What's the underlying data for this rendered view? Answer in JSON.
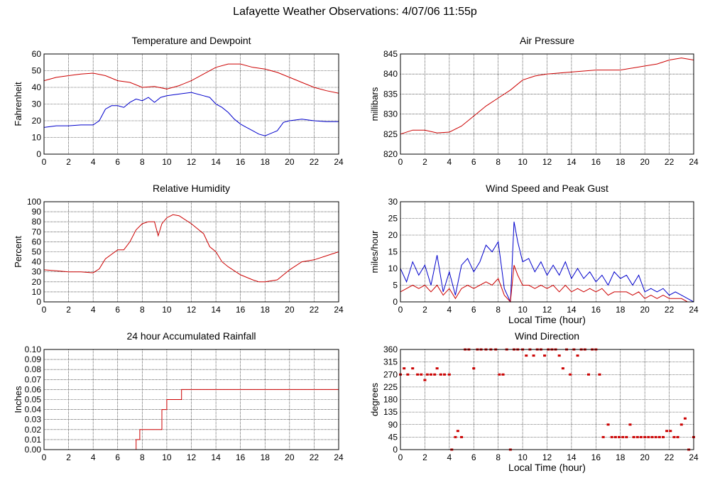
{
  "suptitle": "Lafayette Weather Observations: 4/07/06 11:55p",
  "colors": {
    "red": "#cc0000",
    "blue": "#0000cc",
    "grid": "#000000"
  },
  "chart_data": [
    {
      "id": "temp",
      "type": "line",
      "title": "Temperature and Dewpoint",
      "xlabel": "",
      "ylabel": "Fahrenheit",
      "xlim": [
        0,
        24
      ],
      "ylim": [
        0,
        60
      ],
      "xticks": [
        0,
        2,
        4,
        6,
        8,
        10,
        12,
        14,
        16,
        18,
        20,
        22,
        24
      ],
      "yticks": [
        0,
        10,
        20,
        30,
        40,
        50,
        60
      ],
      "grid": true,
      "series": [
        {
          "color": "red",
          "x": [
            0,
            1,
            2,
            3,
            4,
            5,
            6,
            7,
            8,
            9,
            10,
            11,
            12,
            13,
            14,
            15,
            16,
            17,
            18,
            19,
            20,
            21,
            22,
            23,
            24
          ],
          "y": [
            44,
            46,
            47,
            48,
            48.5,
            47,
            44,
            43,
            40,
            40.5,
            39,
            41,
            44,
            48,
            52,
            54,
            54,
            52,
            51,
            49,
            46,
            43,
            40,
            38,
            36.5
          ]
        },
        {
          "color": "blue",
          "x": [
            0,
            1,
            2,
            3,
            4,
            4.5,
            5,
            5.5,
            6,
            6.5,
            7,
            7.5,
            8,
            8.5,
            9,
            9.5,
            10,
            11,
            12,
            13,
            13.5,
            14,
            14.5,
            15,
            15.5,
            16,
            16.5,
            17,
            17.5,
            18,
            19,
            19.5,
            20,
            21,
            22,
            23,
            24
          ],
          "y": [
            16,
            17,
            17,
            17.5,
            17.5,
            20,
            27,
            29,
            29,
            28,
            31,
            33,
            32,
            34,
            31,
            34,
            35,
            36,
            37,
            35,
            34,
            30,
            28,
            25,
            21,
            18,
            16,
            14,
            12,
            11,
            14,
            19,
            20,
            21,
            20,
            19.5,
            19.5
          ]
        }
      ]
    },
    {
      "id": "pressure",
      "type": "line",
      "title": "Air Pressure",
      "xlabel": "",
      "ylabel": "millibars",
      "xlim": [
        0,
        24
      ],
      "ylim": [
        820,
        845
      ],
      "xticks": [
        0,
        2,
        4,
        6,
        8,
        10,
        12,
        14,
        16,
        18,
        20,
        22,
        24
      ],
      "yticks": [
        820,
        825,
        830,
        835,
        840,
        845
      ],
      "grid": true,
      "series": [
        {
          "color": "red",
          "x": [
            0,
            1,
            2,
            3,
            4,
            5,
            6,
            7,
            8,
            9,
            10,
            11,
            12,
            14,
            16,
            18,
            20,
            21,
            22,
            23,
            24
          ],
          "y": [
            825,
            826,
            826,
            825.3,
            825.5,
            827,
            829.5,
            832,
            834,
            836,
            838.5,
            839.5,
            840,
            840.5,
            841,
            841,
            842,
            842.5,
            843.5,
            844,
            843.5
          ]
        }
      ]
    },
    {
      "id": "humidity",
      "type": "line",
      "title": "Relative Humidity",
      "xlabel": "",
      "ylabel": "Percent",
      "xlim": [
        0,
        24
      ],
      "ylim": [
        0,
        100
      ],
      "xticks": [
        0,
        2,
        4,
        6,
        8,
        10,
        12,
        14,
        16,
        18,
        20,
        22,
        24
      ],
      "yticks": [
        0,
        10,
        20,
        30,
        40,
        50,
        60,
        70,
        80,
        90,
        100
      ],
      "grid": true,
      "series": [
        {
          "color": "red",
          "x": [
            0,
            1,
            2,
            3,
            4,
            4.5,
            5,
            6,
            6.5,
            7,
            7.5,
            8,
            8.5,
            9,
            9.3,
            9.6,
            10,
            10.5,
            11,
            12,
            13,
            13.5,
            14,
            14.5,
            15,
            16,
            17,
            17.5,
            18,
            19,
            20,
            21,
            22,
            23,
            24
          ],
          "y": [
            32,
            31,
            30,
            30,
            29,
            33,
            43,
            52,
            52,
            60,
            72,
            78,
            80,
            80,
            66,
            78,
            84,
            87,
            86,
            78,
            68,
            55,
            50,
            40,
            35,
            27,
            22,
            20,
            20,
            22,
            32,
            40,
            42,
            46,
            50
          ]
        }
      ]
    },
    {
      "id": "wind",
      "type": "line",
      "title": "Wind Speed and Peak Gust",
      "xlabel": "Local Time (hour)",
      "ylabel": "miles/hour",
      "xlim": [
        0,
        24
      ],
      "ylim": [
        0,
        30
      ],
      "xticks": [
        0,
        2,
        4,
        6,
        8,
        10,
        12,
        14,
        16,
        18,
        20,
        22,
        24
      ],
      "yticks": [
        0,
        5,
        10,
        15,
        20,
        25,
        30
      ],
      "grid": true,
      "series": [
        {
          "color": "blue",
          "x": [
            0,
            0.5,
            1,
            1.5,
            2,
            2.5,
            3,
            3.5,
            4,
            4.5,
            5,
            5.5,
            6,
            6.5,
            7,
            7.5,
            8,
            8.5,
            9,
            9.3,
            9.6,
            10,
            10.5,
            11,
            11.5,
            12,
            12.5,
            13,
            13.5,
            14,
            14.5,
            15,
            15.5,
            16,
            16.5,
            17,
            17.5,
            18,
            18.5,
            19,
            19.5,
            20,
            20.5,
            21,
            21.5,
            22,
            22.5,
            23,
            23.5,
            24
          ],
          "y": [
            10,
            6,
            12,
            8,
            11,
            5,
            14,
            3,
            9,
            2,
            11,
            13,
            9,
            12,
            17,
            15,
            18,
            4,
            0,
            24,
            18,
            12,
            13,
            9,
            12,
            8,
            11,
            8,
            12,
            7,
            10,
            7,
            9,
            6,
            8,
            5,
            9,
            7,
            8,
            5,
            8,
            3,
            4,
            3,
            4,
            2,
            3,
            2,
            1,
            0
          ]
        },
        {
          "color": "red",
          "x": [
            0,
            0.5,
            1,
            1.5,
            2,
            2.5,
            3,
            3.5,
            4,
            4.5,
            5,
            5.5,
            6,
            6.5,
            7,
            7.5,
            8,
            8.5,
            9,
            9.3,
            9.6,
            10,
            10.5,
            11,
            11.5,
            12,
            12.5,
            13,
            13.5,
            14,
            14.5,
            15,
            15.5,
            16,
            16.5,
            17,
            17.5,
            18,
            18.5,
            19,
            19.5,
            20,
            20.5,
            21,
            21.5,
            22,
            22.5,
            23,
            23.5,
            24
          ],
          "y": [
            3,
            4,
            5,
            4,
            5,
            3,
            5,
            2,
            4,
            1,
            4,
            5,
            4,
            5,
            6,
            5,
            7,
            2,
            0,
            11,
            8,
            5,
            5,
            4,
            5,
            4,
            5,
            3,
            5,
            3,
            4,
            3,
            4,
            3,
            4,
            2,
            3,
            3,
            3,
            2,
            3,
            1,
            2,
            1,
            2,
            1,
            1,
            1,
            0,
            0
          ]
        }
      ]
    },
    {
      "id": "rain",
      "type": "line",
      "title": "24 hour Accumulated Rainfall",
      "xlabel": "",
      "ylabel": "Inches",
      "xlim": [
        0,
        24
      ],
      "ylim": [
        0,
        0.1
      ],
      "xticks": [
        0,
        2,
        4,
        6,
        8,
        10,
        12,
        14,
        16,
        18,
        20,
        22,
        24
      ],
      "yticks": [
        "0.00",
        "0.01",
        "0.02",
        "0.03",
        "0.04",
        "0.05",
        "0.06",
        "0.07",
        "0.08",
        "0.09",
        "0.10"
      ],
      "grid": true,
      "series": [
        {
          "color": "red",
          "x": [
            0,
            7.5,
            7.5,
            7.8,
            7.8,
            9.6,
            9.6,
            10,
            10,
            11.2,
            11.2,
            24
          ],
          "y": [
            0,
            0,
            0.01,
            0.01,
            0.02,
            0.02,
            0.04,
            0.04,
            0.05,
            0.05,
            0.06,
            0.06
          ]
        }
      ]
    },
    {
      "id": "direction",
      "type": "scatter",
      "title": "Wind Direction",
      "xlabel": "Local Time (hour)",
      "ylabel": "degrees",
      "xlim": [
        0,
        24
      ],
      "ylim": [
        0,
        360
      ],
      "xticks": [
        0,
        2,
        4,
        6,
        8,
        10,
        12,
        14,
        16,
        18,
        20,
        22,
        24
      ],
      "yticks": [
        0,
        45,
        90,
        135,
        180,
        225,
        270,
        315,
        360
      ],
      "grid": true,
      "series": [
        {
          "color": "red",
          "x": [
            0,
            0.3,
            0.6,
            1,
            1.4,
            1.7,
            2,
            2.2,
            2.5,
            2.8,
            3,
            3.3,
            3.6,
            4,
            4.2,
            4.5,
            4.7,
            5,
            5.3,
            5.6,
            6,
            6.3,
            6.6,
            7,
            7.4,
            7.8,
            8.1,
            8.4,
            8.7,
            9,
            9.3,
            9.6,
            10,
            10.3,
            10.6,
            10.9,
            11.2,
            11.5,
            11.8,
            12.1,
            12.4,
            12.7,
            13,
            13.3,
            13.6,
            13.9,
            14.2,
            14.5,
            14.8,
            15.1,
            15.4,
            15.7,
            16,
            16.3,
            16.6,
            17,
            17.3,
            17.6,
            17.9,
            18.2,
            18.5,
            18.8,
            19.1,
            19.4,
            19.7,
            20,
            20.3,
            20.6,
            20.9,
            21.2,
            21.5,
            21.8,
            22.1,
            22.4,
            22.7,
            23,
            23.3,
            23.6,
            24
          ],
          "y": [
            270,
            292,
            270,
            292,
            270,
            270,
            250,
            270,
            270,
            270,
            292,
            270,
            270,
            270,
            0,
            45,
            67,
            45,
            360,
            360,
            292,
            360,
            360,
            360,
            360,
            360,
            270,
            270,
            360,
            0,
            360,
            360,
            360,
            338,
            360,
            338,
            360,
            360,
            338,
            360,
            360,
            360,
            338,
            292,
            360,
            270,
            360,
            338,
            360,
            360,
            270,
            360,
            360,
            270,
            45,
            90,
            45,
            45,
            45,
            45,
            45,
            90,
            45,
            45,
            45,
            45,
            45,
            45,
            45,
            45,
            45,
            67,
            67,
            45,
            45,
            90,
            112,
            0,
            45
          ]
        }
      ]
    }
  ]
}
